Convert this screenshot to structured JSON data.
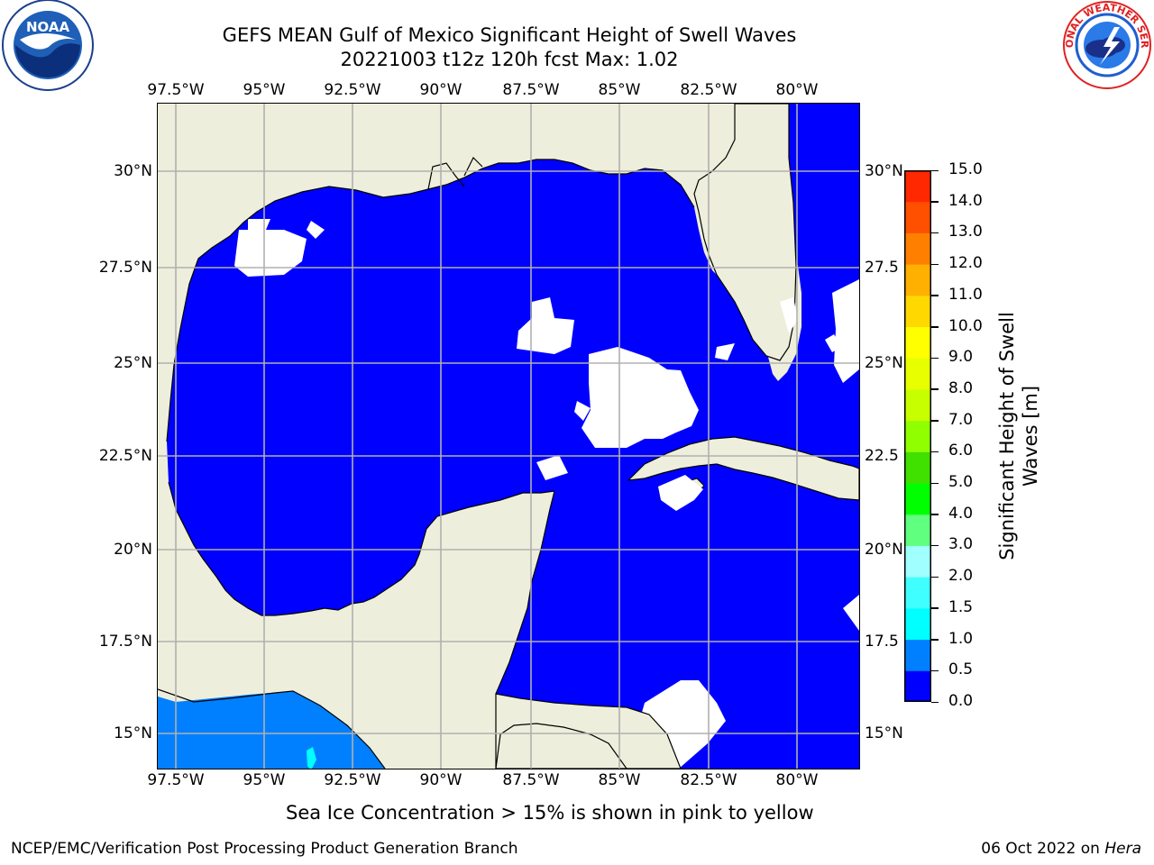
{
  "header": {
    "title_line1": "GEFS MEAN Gulf of Mexico Significant Height of Swell Waves",
    "title_line2": "20221003 t12z 120h fcst   Max: 1.02"
  },
  "logos": {
    "left": {
      "name": "noaa-logo",
      "text": "NOAA",
      "ring_text": "NATIONAL OCEANIC AND ATMOSPHERIC ADMINISTRATION · U.S. DEPARTMENT OF COMMERCE"
    },
    "right": {
      "name": "nws-logo",
      "ring_text": "NATIONAL WEATHER SERVICE"
    }
  },
  "map": {
    "lon_ticks": [
      "97.5°W",
      "95°W",
      "92.5°W",
      "90°W",
      "87.5°W",
      "85°W",
      "82.5°W",
      "80°W"
    ],
    "lat_ticks_left": [
      "30°N",
      "27.5°N",
      "25°N",
      "22.5°N",
      "20°N",
      "17.5°N",
      "15°N"
    ],
    "lat_ticks_right": [
      "30°N",
      "27.5",
      "25°N",
      "22.5",
      "20°N",
      "17.5",
      "15°N"
    ],
    "colors": {
      "land": "#eeeedc",
      "swell_0_0.5": "#0000ff",
      "swell_0.5_1.0": "#0080ff",
      "swell_1.0_1.5": "#00ffff",
      "no_data": "#ffffff",
      "grid": "#b0b0b0"
    }
  },
  "colorbar": {
    "label_line1": "Significant Height of Swell",
    "label_line2": "Waves [m]",
    "ticks": [
      "15.0",
      "14.0",
      "13.0",
      "12.0",
      "11.0",
      "10.0",
      "9.0",
      "8.0",
      "7.0",
      "6.0",
      "5.0",
      "4.0",
      "3.0",
      "2.0",
      "1.5",
      "1.0",
      "0.5",
      "0.0"
    ],
    "colors_bottom_to_top": [
      "#0000ff",
      "#0080ff",
      "#00ffff",
      "#40ffff",
      "#a0ffff",
      "#60ff80",
      "#00ff00",
      "#40e000",
      "#90ff00",
      "#c8ff00",
      "#e8ff00",
      "#ffff00",
      "#ffd800",
      "#ffb000",
      "#ff8000",
      "#ff5000",
      "#ff2800"
    ]
  },
  "note": "Sea Ice Concentration > 15% is shown in pink to yellow",
  "footer": {
    "left": "NCEP/EMC/Verification Post Processing Product Generation Branch",
    "right_prefix": "06 Oct 2022 on ",
    "right_host": "Hera"
  }
}
